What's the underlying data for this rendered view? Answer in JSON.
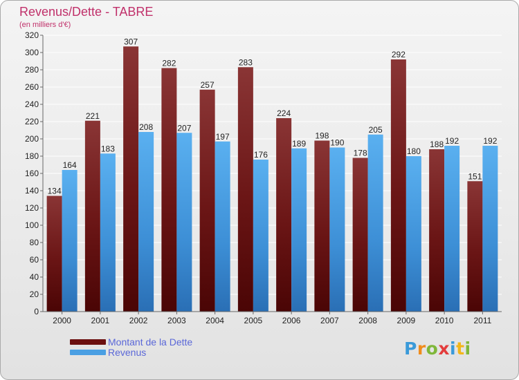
{
  "title": "Revenus/Dette - TABRE",
  "subtitle": "(en milliers d'€)",
  "logo": {
    "text": "Proxiti",
    "letter_colors": [
      "#3a9ad9",
      "#f08c1c",
      "#7fb73a",
      "#e33c3c",
      "#3a9ad9",
      "#f2b61a",
      "#7fb73a"
    ]
  },
  "legend": {
    "items": [
      {
        "label": "Montant de la Dette",
        "color": "#6b0f0f"
      },
      {
        "label": "Revenus",
        "color": "#4a9fe3"
      }
    ]
  },
  "chart_data": {
    "type": "bar",
    "categories": [
      "2000",
      "2001",
      "2002",
      "2003",
      "2004",
      "2005",
      "2006",
      "2007",
      "2008",
      "2009",
      "2010",
      "2011"
    ],
    "series": [
      {
        "name": "Montant de la Dette",
        "color": "#7a1d1d",
        "values": [
          134,
          221,
          307,
          282,
          257,
          283,
          224,
          198,
          178,
          292,
          188,
          151
        ]
      },
      {
        "name": "Revenus",
        "color": "#4a9fe3",
        "values": [
          164,
          183,
          208,
          207,
          197,
          176,
          189,
          190,
          205,
          180,
          192,
          192
        ]
      }
    ],
    "ylim": [
      0,
      320
    ],
    "yticks": [
      0,
      20,
      40,
      60,
      80,
      100,
      120,
      140,
      160,
      180,
      200,
      220,
      240,
      260,
      280,
      300,
      320
    ],
    "grid": true,
    "legend_position": "bottom-left"
  }
}
